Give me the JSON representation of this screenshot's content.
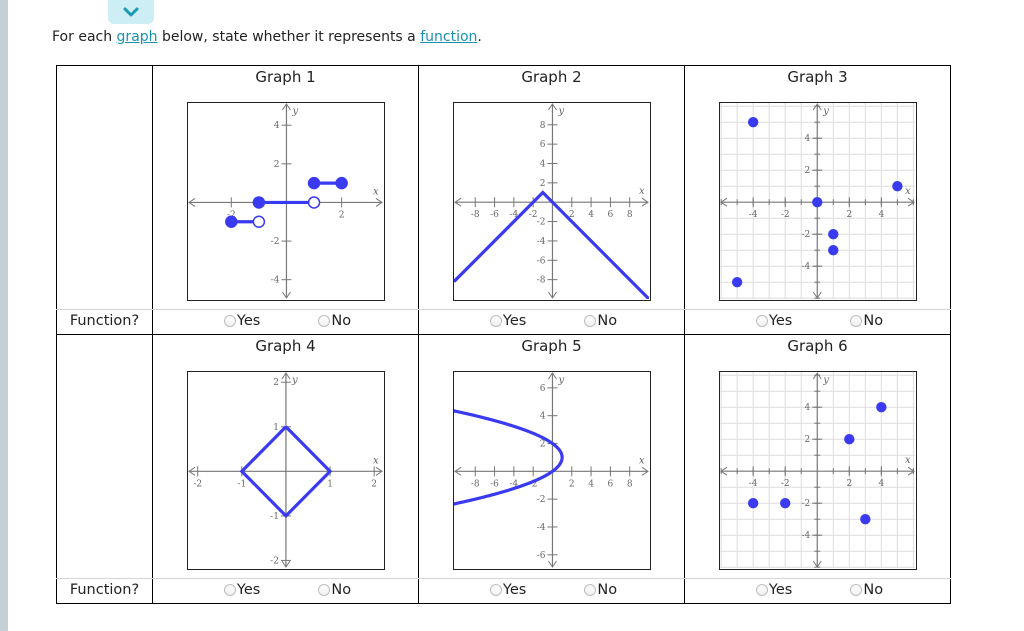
{
  "colors": {
    "accent": "#1c8fb0",
    "plot_blue": "#3a3af0",
    "axis_gray": "#777777",
    "grid_gray": "#dddddd",
    "collapse_bg": "#cdeef4"
  },
  "header": {
    "collapse_icon": "chevron-down-icon",
    "prompt_before": "For each ",
    "prompt_link1": "graph",
    "prompt_middle": " below, state whether it represents a ",
    "prompt_link2": "function",
    "prompt_after": "."
  },
  "table": {
    "row_label": "Function?",
    "options": {
      "yes": "Yes",
      "no": "No"
    },
    "graphs": [
      {
        "title": "Graph 1",
        "selected": null,
        "xrange": [
          -3.57,
          3.5
        ],
        "yrange": [
          -5.0,
          5.15
        ],
        "grid": false,
        "xticks": [
          -2,
          2
        ],
        "xticklabels": [
          "-2",
          "2"
        ],
        "yticks": [
          -4,
          -2,
          2,
          4
        ],
        "yticklabels": [
          "-4",
          "-2",
          "2",
          "4"
        ],
        "segments": [
          {
            "from": [
              -2,
              -1
            ],
            "to": [
              -1,
              -1
            ],
            "from_closed": true,
            "to_closed": false
          },
          {
            "from": [
              -1,
              0
            ],
            "to": [
              1,
              0
            ],
            "from_closed": true,
            "to_closed": false
          },
          {
            "from": [
              1,
              1
            ],
            "to": [
              2,
              1
            ],
            "from_closed": true,
            "to_closed": true
          }
        ]
      },
      {
        "title": "Graph 2",
        "selected": null,
        "xrange": [
          -10.2,
          10.0
        ],
        "yrange": [
          -10.0,
          10.25
        ],
        "grid": false,
        "xticks": [
          -8,
          -6,
          -4,
          -2,
          2,
          4,
          6,
          8
        ],
        "xticklabels": [
          "-8",
          "-6",
          "-4",
          "-2",
          "2",
          "4",
          "6",
          "8"
        ],
        "yticks": [
          -8,
          -6,
          -4,
          -2,
          2,
          4,
          6,
          8
        ],
        "yticklabels": [
          "-8",
          "-6",
          "-4",
          "-2",
          "2",
          "4",
          "6",
          "8"
        ],
        "polyline": [
          [
            -10.2,
            -8.2
          ],
          [
            -1,
            1
          ],
          [
            10,
            -10
          ]
        ]
      },
      {
        "title": "Graph 3",
        "selected": null,
        "xrange": [
          -6.07,
          6.1
        ],
        "yrange": [
          -6.05,
          6.2
        ],
        "grid": true,
        "xticks": [
          -4,
          -2,
          2,
          4
        ],
        "xticklabels": [
          "-4",
          "-2",
          "2",
          "4"
        ],
        "yticks": [
          -4,
          -2,
          2,
          4
        ],
        "yticklabels": [
          "-4",
          "-2",
          "2",
          "4"
        ],
        "points": [
          [
            -4,
            5
          ],
          [
            5,
            1
          ],
          [
            0,
            0
          ],
          [
            1,
            -2
          ],
          [
            1,
            -3
          ],
          [
            -5,
            -5
          ]
        ]
      },
      {
        "title": "Graph 4",
        "selected": null,
        "xrange": [
          -2.22,
          2.2
        ],
        "yrange": [
          -2.17,
          2.23
        ],
        "grid": false,
        "xticks": [
          -2,
          -1,
          1,
          2
        ],
        "xticklabels": [
          "-2",
          "-1",
          "1",
          "2"
        ],
        "yticks": [
          -2,
          -1,
          1,
          2
        ],
        "yticklabels": [
          "-2",
          "-1",
          "1",
          "2"
        ],
        "polyline": [
          [
            0,
            1
          ],
          [
            1,
            0
          ],
          [
            0,
            -1
          ],
          [
            -1,
            0
          ],
          [
            0,
            1
          ]
        ]
      },
      {
        "title": "Graph 5",
        "selected": null,
        "xrange": [
          -10.2,
          10.0
        ],
        "yrange": [
          -6.95,
          7.14
        ],
        "grid": false,
        "xticks": [
          -8,
          -6,
          -4,
          -2,
          2,
          4,
          6,
          8
        ],
        "xticklabels": [
          "-8",
          "-6",
          "-4",
          "-2",
          "2",
          "4",
          "6",
          "8"
        ],
        "yticks": [
          -6,
          -4,
          -2,
          2,
          4,
          6
        ],
        "yticklabels": [
          "-6",
          "-4",
          "-2",
          "2",
          "4",
          "6"
        ],
        "parabola_x_of_y": {
          "a": -1,
          "k": 1,
          "h": 1,
          "y_from": -2.4,
          "y_to": 4.4,
          "note": "x = a(y-k)^2 + h"
        }
      },
      {
        "title": "Graph 6",
        "selected": null,
        "xrange": [
          -6.07,
          6.1
        ],
        "yrange": [
          -6.05,
          6.2
        ],
        "grid": true,
        "xticks": [
          -4,
          -2,
          2,
          4
        ],
        "xticklabels": [
          "-4",
          "-2",
          "2",
          "4"
        ],
        "yticks": [
          -4,
          -2,
          2,
          4
        ],
        "yticklabels": [
          "-4",
          "-2",
          "2",
          "4"
        ],
        "points": [
          [
            -4,
            -2
          ],
          [
            -2,
            -2
          ],
          [
            2,
            2
          ],
          [
            4,
            4
          ],
          [
            3,
            -3
          ]
        ]
      }
    ]
  }
}
